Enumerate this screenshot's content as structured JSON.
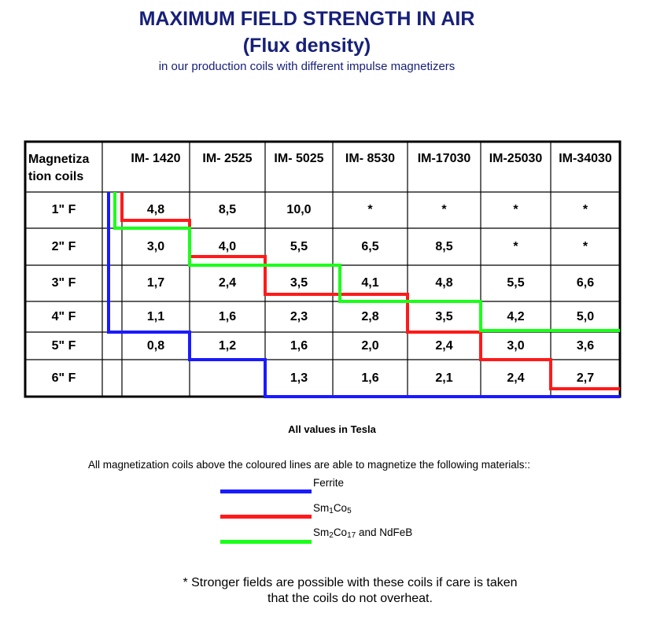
{
  "title": "MAXIMUM FIELD STRENGTH IN AIR",
  "subtitle": "(Flux density)",
  "caption": "in our production coils with different impulse magnetizers",
  "table": {
    "corner_label_line1": "Magnetiza",
    "corner_label_line2": "tion coils",
    "columns": [
      "IM- 1420",
      "IM- 2525",
      "IM- 5025",
      "IM- 8530",
      "IM-17030",
      "IM-25030",
      "IM-34030"
    ],
    "rows": [
      {
        "label": "1\" F",
        "values": [
          "4,8",
          "8,5",
          "10,0",
          "*",
          "*",
          "*",
          "*"
        ]
      },
      {
        "label": "2\" F",
        "values": [
          "3,0",
          "4,0",
          "5,5",
          "6,5",
          "8,5",
          "*",
          "*"
        ]
      },
      {
        "label": "3\" F",
        "values": [
          "1,7",
          "2,4",
          "3,5",
          "4,1",
          "4,8",
          "5,5",
          "6,6"
        ]
      },
      {
        "label": "4\" F",
        "values": [
          "1,1",
          "1,6",
          "2,3",
          "2,8",
          "3,5",
          "4,2",
          "5,0"
        ]
      },
      {
        "label": "5\" F",
        "values": [
          "0,8",
          "1,2",
          "1,6",
          "2,0",
          "2,4",
          "3,0",
          "3,6"
        ]
      },
      {
        "label": "6\" F",
        "values": [
          "",
          "",
          "1,3",
          "1,6",
          "2,1",
          "2,4",
          "2,7"
        ]
      }
    ]
  },
  "units_note": "All values in Tesla",
  "legend_intro": "All magnetization coils above the coloured lines are able to magnetize the following materials::",
  "legend": [
    {
      "color": "#1a1aff",
      "label": "Ferrite"
    },
    {
      "color": "#ff1a1a",
      "label_a": "Sm",
      "sub_a": "1",
      "label_b": "Co",
      "sub_b": "5",
      "label_c": ""
    },
    {
      "color": "#1aff1a",
      "label_a": "Sm",
      "sub_a": "2",
      "label_b": "Co",
      "sub_b": "17",
      "label_c": " and NdFeB"
    }
  ],
  "footer_line1": "* Stronger fields are possible with these coils if care is taken",
  "footer_line2": "that the coils do not overheat."
}
